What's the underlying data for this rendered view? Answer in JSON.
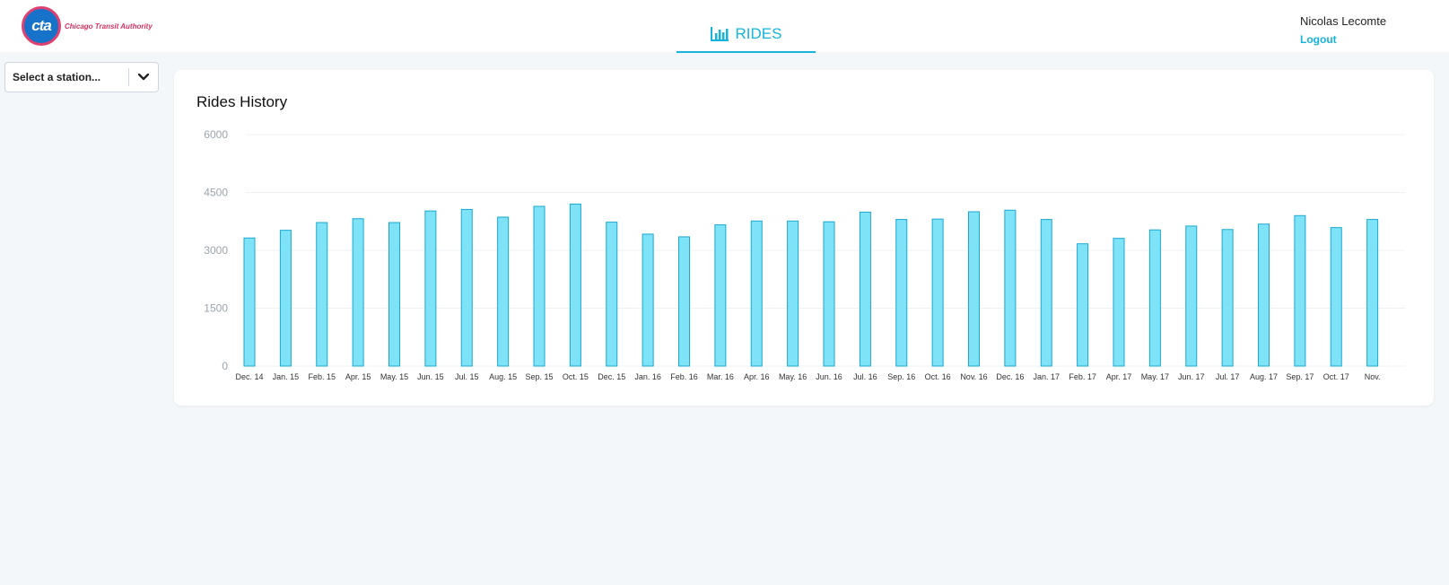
{
  "header": {
    "logo_mark": "cta",
    "logo_text": "Chicago Transit Authority",
    "tab_label": "RIDES",
    "tab_icon": "bar-chart-icon",
    "user_name": "Nicolas Lecomte",
    "logout_label": "Logout"
  },
  "sidebar": {
    "station_placeholder": "Select a station...",
    "dropdown_icon": "chevron-down-icon"
  },
  "card": {
    "title": "Rides History"
  },
  "colors": {
    "accent": "#14b4dc",
    "bar_fill": "#7fe3f8",
    "bar_stroke": "#1ba7d0",
    "brand_red": "#d6315f",
    "brand_blue": "#1673c9"
  },
  "chart_data": {
    "type": "bar",
    "title": "Rides History",
    "xlabel": "",
    "ylabel": "",
    "ylim": [
      0,
      6000
    ],
    "yticks": [
      0,
      1500,
      3000,
      4500,
      6000
    ],
    "grid": true,
    "categories": [
      "Dec. 14",
      "Jan. 15",
      "Feb. 15",
      "Apr. 15",
      "May. 15",
      "Jun. 15",
      "Jul. 15",
      "Aug. 15",
      "Sep. 15",
      "Oct. 15",
      "Dec. 15",
      "Jan. 16",
      "Feb. 16",
      "Mar. 16",
      "Apr. 16",
      "May. 16",
      "Jun. 16",
      "Jul. 16",
      "Sep. 16",
      "Oct. 16",
      "Nov. 16",
      "Dec. 16",
      "Jan. 17",
      "Feb. 17",
      "Apr. 17",
      "May. 17",
      "Jun. 17",
      "Jul. 17",
      "Aug. 17",
      "Sep. 17",
      "Oct. 17",
      "Nov."
    ],
    "values": [
      3320,
      3520,
      3720,
      3820,
      3720,
      4020,
      4060,
      3860,
      4140,
      4200,
      3730,
      3420,
      3350,
      3660,
      3760,
      3760,
      3740,
      3990,
      3800,
      3810,
      4000,
      4040,
      3800,
      3170,
      3310,
      3530,
      3630,
      3540,
      3680,
      3900,
      3590,
      3800
    ]
  }
}
